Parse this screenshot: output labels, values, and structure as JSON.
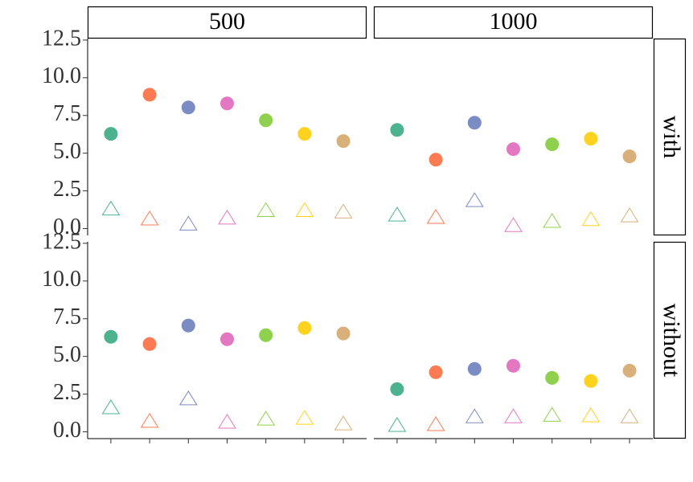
{
  "facet_columns": [
    "500",
    "1000"
  ],
  "facet_rows": [
    "with",
    "without"
  ],
  "chart_data": [
    {
      "type": "scatter",
      "categories": [
        null,
        null,
        null,
        null,
        null,
        null,
        null
      ],
      "colors": [
        "#4db38e",
        "#fc7b52",
        "#7b8cc4",
        "#e377c2",
        "#8fd14f",
        "#ffd21f",
        "#d9b07a"
      ],
      "ylim": [
        -0.45,
        12.6
      ],
      "yticks": [
        {
          "value": 0,
          "label": "0.0"
        },
        {
          "value": 2.5,
          "label": "2.5"
        },
        {
          "value": 5,
          "label": "5.0"
        },
        {
          "value": 7.5,
          "label": "7.5"
        },
        {
          "value": 10,
          "label": "10.0"
        },
        {
          "value": 12.5,
          "label": "12.5"
        }
      ],
      "series": [
        {
          "shape": "circle",
          "filled": true,
          "values": [
            6.28,
            8.88,
            8.03,
            8.3,
            7.18,
            6.28,
            5.8
          ]
        },
        {
          "shape": "triangle",
          "filled": false,
          "values": [
            1.3,
            0.64,
            0.3,
            0.7,
            1.2,
            1.2,
            1.1
          ]
        }
      ]
    },
    {
      "type": "scatter",
      "categories": [
        null,
        null,
        null,
        null,
        null,
        null,
        null
      ],
      "colors": [
        "#4db38e",
        "#fc7b52",
        "#7b8cc4",
        "#e377c2",
        "#8fd14f",
        "#ffd21f",
        "#d9b07a"
      ],
      "ylim": [
        -0.45,
        12.6
      ],
      "series": [
        {
          "shape": "circle",
          "filled": true,
          "values": [
            6.54,
            4.57,
            7.02,
            5.27,
            5.59,
            5.96,
            4.79
          ]
        },
        {
          "shape": "triangle",
          "filled": false,
          "values": [
            0.9,
            0.75,
            1.86,
            0.2,
            0.48,
            0.6,
            0.85
          ]
        }
      ]
    },
    {
      "type": "scatter",
      "categories": [
        null,
        null,
        null,
        null,
        null,
        null,
        null
      ],
      "colors": [
        "#4db38e",
        "#fc7b52",
        "#7b8cc4",
        "#e377c2",
        "#8fd14f",
        "#ffd21f",
        "#d9b07a"
      ],
      "ylim": [
        -0.45,
        12.6
      ],
      "yticks": [
        {
          "value": 0,
          "label": "0.0"
        },
        {
          "value": 2.5,
          "label": "2.5"
        },
        {
          "value": 5,
          "label": "5.0"
        },
        {
          "value": 7.5,
          "label": "7.5"
        },
        {
          "value": 10,
          "label": "10.0"
        },
        {
          "value": 12.5,
          "label": "12.5"
        }
      ],
      "series": [
        {
          "shape": "circle",
          "filled": true,
          "values": [
            6.3,
            5.82,
            7.05,
            6.14,
            6.41,
            6.89,
            6.52
          ]
        },
        {
          "shape": "triangle",
          "filled": false,
          "values": [
            1.6,
            0.7,
            2.19,
            0.64,
            0.85,
            0.9,
            0.53
          ]
        }
      ]
    },
    {
      "type": "scatter",
      "categories": [
        null,
        null,
        null,
        null,
        null,
        null,
        null
      ],
      "colors": [
        "#4db38e",
        "#fc7b52",
        "#7b8cc4",
        "#e377c2",
        "#8fd14f",
        "#ffd21f",
        "#d9b07a"
      ],
      "ylim": [
        -0.45,
        12.6
      ],
      "series": [
        {
          "shape": "circle",
          "filled": true,
          "values": [
            2.83,
            3.95,
            4.17,
            4.38,
            3.58,
            3.37,
            4.06
          ]
        },
        {
          "shape": "triangle",
          "filled": false,
          "values": [
            0.43,
            0.48,
            1.0,
            1.0,
            1.1,
            1.07,
            1.0
          ]
        }
      ]
    }
  ]
}
